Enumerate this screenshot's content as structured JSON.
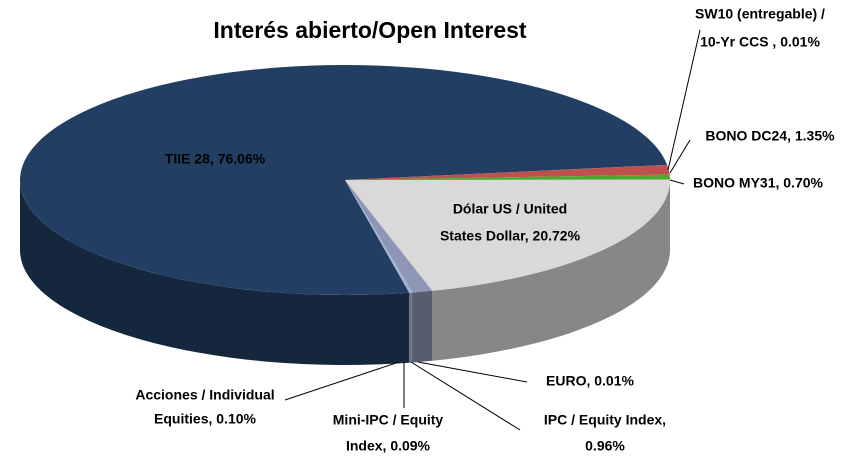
{
  "chart_data": {
    "type": "pie3d",
    "title": "Interés abierto/Open Interest",
    "categories": [
      "TIIE 28",
      "SW10 (entregable) / 10-Yr CCS",
      "BONO DC24",
      "BONO MY31",
      "Dólar US / United States Dollar",
      "EURO",
      "IPC / Equity Index",
      "Mini-IPC / Equity Index",
      "Acciones / Individual Equities"
    ],
    "values": [
      76.06,
      0.01,
      1.35,
      0.7,
      20.72,
      0.01,
      0.96,
      0.09,
      0.1
    ],
    "value_labels": [
      [
        "TIIE 28, 76.06%"
      ],
      [
        "SW10 (entregable) /",
        "10-Yr CCS , 0.01%"
      ],
      [
        "BONO DC24, 1.35%"
      ],
      [
        "BONO MY31, 0.70%"
      ],
      [
        "Dólar US / United",
        "States Dollar, 20.72%"
      ],
      [
        "EURO, 0.01%"
      ],
      [
        "IPC / Equity Index,",
        "0.96%"
      ],
      [
        "Mini-IPC / Equity",
        "Index, 0.09%"
      ],
      [
        "Acciones / Individual",
        "Equities, 0.10%"
      ]
    ],
    "colors": [
      "#223f63",
      "#4f81bd",
      "#c0504d",
      "#4ea72e",
      "#d9d9d9",
      "#8064a2",
      "#8d96b5",
      "#9aa8c7",
      "#a6b3d0"
    ]
  }
}
